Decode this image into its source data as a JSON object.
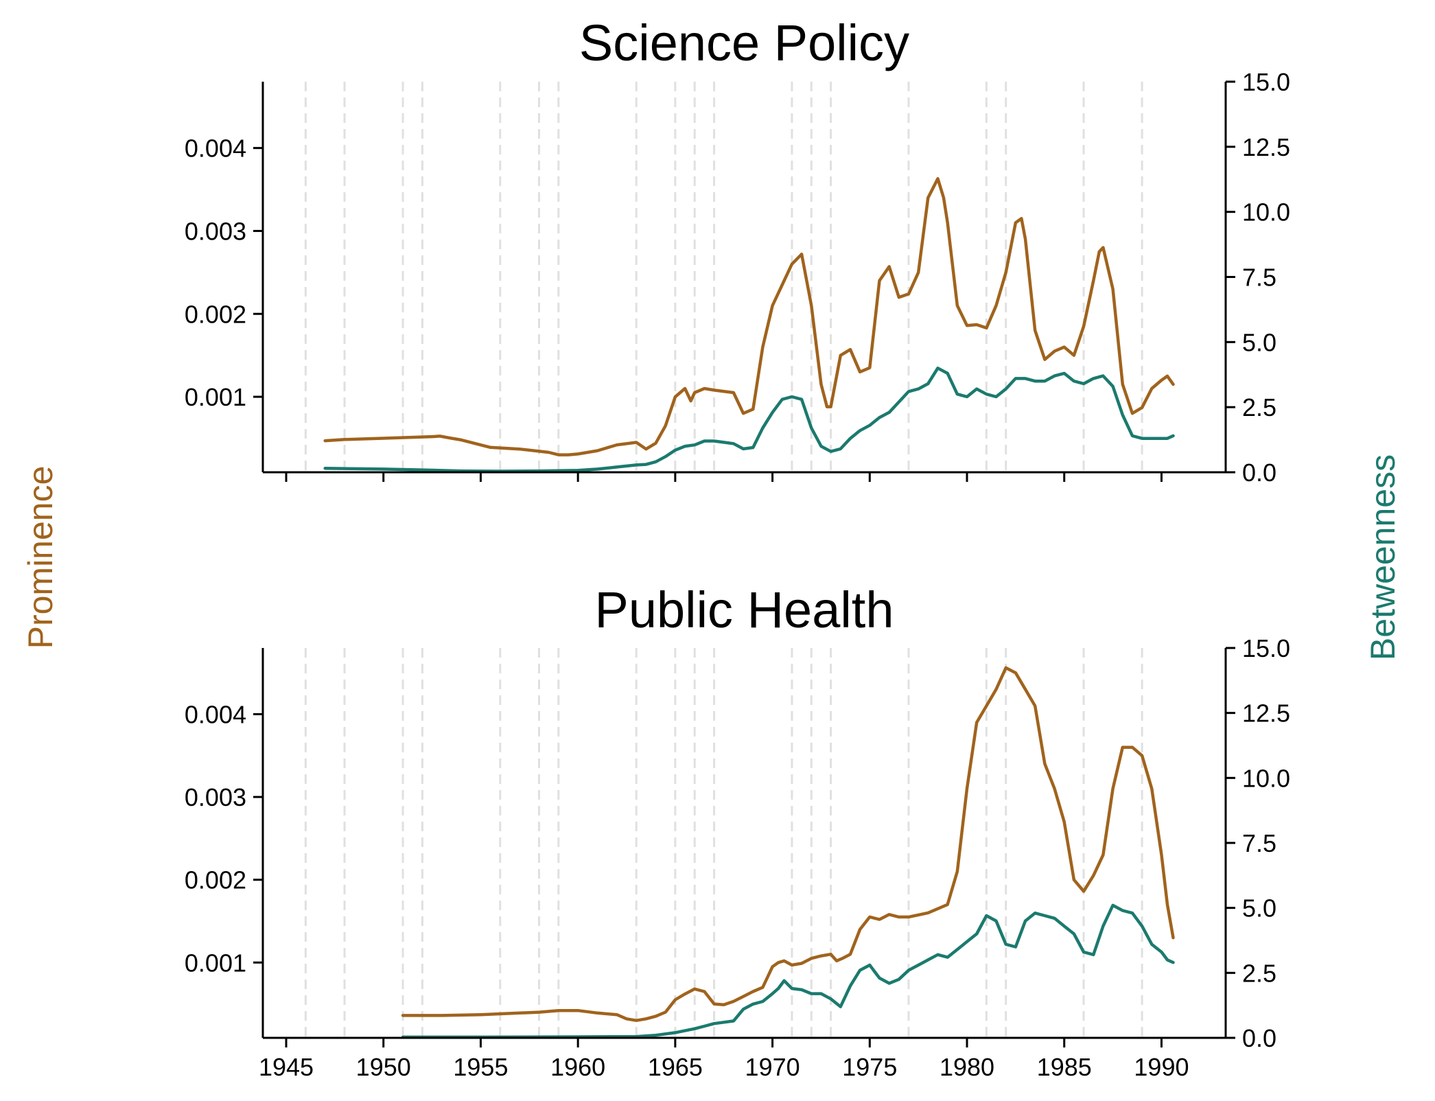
{
  "figure": {
    "ylabel_left": "Prominence",
    "ylabel_right": "Betweenness",
    "colors": {
      "prominence": "#a0631d",
      "betweenness": "#1b7a6e"
    }
  },
  "chart_data": [
    {
      "type": "line",
      "title": "Science Policy",
      "xlim": [
        1943.8,
        1993.3
      ],
      "ylim_left": [
        9e-05,
        0.0048
      ],
      "ylim_right": [
        0,
        15
      ],
      "xticks": [
        1945,
        1950,
        1955,
        1960,
        1965,
        1970,
        1975,
        1980,
        1985,
        1990
      ],
      "xtick_labels_visible": false,
      "left_ticks": [
        0.001,
        0.002,
        0.003,
        0.004
      ],
      "left_tick_labels": [
        "0.001",
        "0.002",
        "0.003",
        "0.004"
      ],
      "right_ticks": [
        0,
        2.5,
        5,
        7.5,
        10,
        12.5,
        15
      ],
      "right_tick_labels": [
        "0.0",
        "2.5",
        "5.0",
        "7.5",
        "10.0",
        "12.5",
        "15.0"
      ],
      "grid": false,
      "event_lines": [
        1946,
        1948,
        1951,
        1952,
        1956,
        1958,
        1959,
        1963,
        1965,
        1966,
        1967,
        1971,
        1972,
        1973,
        1977,
        1981,
        1982,
        1986,
        1989
      ],
      "series": [
        {
          "axis": "left",
          "color": "#a0631d",
          "x": [
            1947.0,
            1948.0,
            1950.0,
            1952.5,
            1952.9,
            1953.5,
            1954.0,
            1955.5,
            1957.0,
            1958.5,
            1959.0,
            1959.5,
            1960.0,
            1961.0,
            1962.0,
            1963.0,
            1963.5,
            1964.0,
            1964.5,
            1965.0,
            1965.5,
            1965.8,
            1966.0,
            1966.5,
            1967.0,
            1968.0,
            1968.5,
            1969.0,
            1969.5,
            1970.0,
            1971.0,
            1971.5,
            1972.0,
            1972.5,
            1972.8,
            1973.0,
            1973.5,
            1974.0,
            1974.5,
            1975.0,
            1975.5,
            1976.0,
            1976.5,
            1977.0,
            1977.5,
            1978.0,
            1978.5,
            1978.8,
            1979.0,
            1979.5,
            1980.0,
            1980.5,
            1981.0,
            1981.5,
            1982.0,
            1982.5,
            1982.8,
            1983.0,
            1983.5,
            1984.0,
            1984.5,
            1985.0,
            1985.5,
            1986.0,
            1986.5,
            1986.8,
            1987.0,
            1987.5,
            1988.0,
            1988.5,
            1989.0,
            1989.5,
            1990.0,
            1990.3,
            1990.6
          ],
          "y": [
            0.00047,
            0.000485,
            0.0005,
            0.00052,
            0.000525,
            0.0005,
            0.00048,
            0.00039,
            0.00037,
            0.00033,
            0.0003,
            0.0003,
            0.00031,
            0.00035,
            0.00042,
            0.00045,
            0.00037,
            0.00044,
            0.00065,
            0.001,
            0.0011,
            0.00095,
            0.00105,
            0.0011,
            0.00108,
            0.00105,
            0.0008,
            0.00085,
            0.0016,
            0.0021,
            0.0026,
            0.00272,
            0.0021,
            0.00115,
            0.00088,
            0.00088,
            0.0015,
            0.00157,
            0.0013,
            0.00135,
            0.0024,
            0.00257,
            0.0022,
            0.00224,
            0.0025,
            0.0034,
            0.00363,
            0.0034,
            0.0031,
            0.0021,
            0.00186,
            0.00187,
            0.00183,
            0.0021,
            0.0025,
            0.0031,
            0.00315,
            0.0029,
            0.0018,
            0.00145,
            0.00155,
            0.0016,
            0.0015,
            0.00185,
            0.0024,
            0.00275,
            0.0028,
            0.0023,
            0.00115,
            0.0008,
            0.00087,
            0.0011,
            0.0012,
            0.00125,
            0.00115
          ]
        },
        {
          "axis": "right",
          "color": "#1b7a6e",
          "x": [
            1947.0,
            1950.0,
            1952.0,
            1954.0,
            1956.0,
            1958.0,
            1960.0,
            1961.0,
            1962.0,
            1963.0,
            1963.5,
            1964.0,
            1964.5,
            1965.0,
            1965.5,
            1966.0,
            1966.5,
            1967.0,
            1967.5,
            1968.0,
            1968.5,
            1969.0,
            1969.5,
            1970.0,
            1970.5,
            1971.0,
            1971.5,
            1972.0,
            1972.5,
            1973.0,
            1973.5,
            1974.0,
            1974.5,
            1975.0,
            1975.5,
            1976.0,
            1976.5,
            1977.0,
            1977.5,
            1978.0,
            1978.5,
            1979.0,
            1979.5,
            1980.0,
            1980.5,
            1981.0,
            1981.5,
            1982.0,
            1982.5,
            1983.0,
            1983.5,
            1984.0,
            1984.5,
            1985.0,
            1985.5,
            1986.0,
            1986.5,
            1987.0,
            1987.5,
            1988.0,
            1988.5,
            1989.0,
            1989.5,
            1990.0,
            1990.3,
            1990.6
          ],
          "y": [
            0.15,
            0.12,
            0.09,
            0.05,
            0.04,
            0.05,
            0.07,
            0.12,
            0.2,
            0.28,
            0.3,
            0.4,
            0.6,
            0.85,
            1.0,
            1.05,
            1.2,
            1.2,
            1.15,
            1.1,
            0.9,
            0.95,
            1.7,
            2.3,
            2.8,
            2.9,
            2.8,
            1.7,
            1.0,
            0.8,
            0.9,
            1.3,
            1.6,
            1.8,
            2.1,
            2.3,
            2.7,
            3.1,
            3.2,
            3.4,
            4.0,
            3.8,
            3.0,
            2.9,
            3.2,
            3.0,
            2.9,
            3.2,
            3.6,
            3.6,
            3.5,
            3.5,
            3.7,
            3.8,
            3.5,
            3.4,
            3.6,
            3.7,
            3.3,
            2.2,
            1.4,
            1.3,
            1.3,
            1.3,
            1.3,
            1.4
          ]
        }
      ]
    },
    {
      "type": "line",
      "title": "Public Health",
      "xlim": [
        1943.8,
        1993.3
      ],
      "ylim_left": [
        9e-05,
        0.0048
      ],
      "ylim_right": [
        0,
        15
      ],
      "xticks": [
        1945,
        1950,
        1955,
        1960,
        1965,
        1970,
        1975,
        1980,
        1985,
        1990
      ],
      "xtick_labels": [
        "1945",
        "1950",
        "1955",
        "1960",
        "1965",
        "1970",
        "1975",
        "1980",
        "1985",
        "1990"
      ],
      "left_ticks": [
        0.001,
        0.002,
        0.003,
        0.004
      ],
      "left_tick_labels": [
        "0.001",
        "0.002",
        "0.003",
        "0.004"
      ],
      "right_ticks": [
        0,
        2.5,
        5,
        7.5,
        10,
        12.5,
        15
      ],
      "right_tick_labels": [
        "0.0",
        "2.5",
        "5.0",
        "7.5",
        "10.0",
        "12.5",
        "15.0"
      ],
      "grid": false,
      "event_lines": [
        1946,
        1948,
        1951,
        1952,
        1956,
        1958,
        1959,
        1963,
        1965,
        1966,
        1967,
        1971,
        1972,
        1973,
        1977,
        1981,
        1982,
        1986,
        1989
      ],
      "series": [
        {
          "axis": "left",
          "color": "#a0631d",
          "x": [
            1951.0,
            1953.0,
            1955.0,
            1958.0,
            1959.0,
            1960.0,
            1961.0,
            1962.0,
            1962.5,
            1963.0,
            1963.5,
            1964.0,
            1964.5,
            1965.0,
            1965.5,
            1966.0,
            1966.5,
            1967.0,
            1967.5,
            1968.0,
            1968.5,
            1969.0,
            1969.5,
            1970.0,
            1970.3,
            1970.6,
            1971.0,
            1971.5,
            1972.0,
            1972.5,
            1973.0,
            1973.3,
            1973.6,
            1974.0,
            1974.5,
            1975.0,
            1975.5,
            1976.0,
            1976.5,
            1977.0,
            1978.0,
            1979.0,
            1979.5,
            1980.0,
            1980.5,
            1981.0,
            1981.5,
            1982.0,
            1982.5,
            1983.0,
            1983.5,
            1984.0,
            1984.5,
            1985.0,
            1985.5,
            1986.0,
            1986.5,
            1987.0,
            1987.5,
            1988.0,
            1988.5,
            1989.0,
            1989.5,
            1990.0,
            1990.3,
            1990.6
          ],
          "y": [
            0.00036,
            0.00036,
            0.00037,
            0.0004,
            0.00042,
            0.00042,
            0.00039,
            0.00037,
            0.00032,
            0.0003,
            0.00032,
            0.00035,
            0.0004,
            0.00055,
            0.00062,
            0.00068,
            0.00065,
            0.0005,
            0.00049,
            0.00053,
            0.00059,
            0.00065,
            0.0007,
            0.00095,
            0.001,
            0.00102,
            0.00097,
            0.00099,
            0.00105,
            0.00108,
            0.0011,
            0.00102,
            0.00105,
            0.0011,
            0.0014,
            0.00155,
            0.00152,
            0.00158,
            0.00155,
            0.00155,
            0.0016,
            0.0017,
            0.0021,
            0.0031,
            0.0039,
            0.0041,
            0.0043,
            0.00456,
            0.0045,
            0.0043,
            0.0041,
            0.0034,
            0.0031,
            0.0027,
            0.002,
            0.00186,
            0.00205,
            0.0023,
            0.0031,
            0.0036,
            0.0036,
            0.0035,
            0.0031,
            0.0023,
            0.0017,
            0.0013
          ]
        },
        {
          "axis": "right",
          "color": "#1b7a6e",
          "x": [
            1951.0,
            1955.0,
            1960.0,
            1963.0,
            1964.0,
            1965.0,
            1966.0,
            1966.5,
            1967.0,
            1967.5,
            1968.0,
            1968.5,
            1969.0,
            1969.5,
            1970.0,
            1970.3,
            1970.6,
            1971.0,
            1971.5,
            1972.0,
            1972.5,
            1973.0,
            1973.5,
            1974.0,
            1974.5,
            1975.0,
            1975.5,
            1976.0,
            1976.5,
            1977.0,
            1977.5,
            1978.0,
            1978.5,
            1979.0,
            1979.5,
            1980.0,
            1980.5,
            1981.0,
            1981.5,
            1982.0,
            1982.5,
            1983.0,
            1983.5,
            1984.0,
            1984.5,
            1985.0,
            1985.5,
            1986.0,
            1986.5,
            1987.0,
            1987.5,
            1988.0,
            1988.5,
            1989.0,
            1989.5,
            1990.0,
            1990.3,
            1990.6
          ],
          "y": [
            0.03,
            0.03,
            0.04,
            0.05,
            0.1,
            0.2,
            0.35,
            0.45,
            0.55,
            0.6,
            0.65,
            1.1,
            1.3,
            1.4,
            1.7,
            1.9,
            2.2,
            1.9,
            1.85,
            1.7,
            1.7,
            1.5,
            1.2,
            2.0,
            2.6,
            2.8,
            2.3,
            2.1,
            2.25,
            2.6,
            2.8,
            3.0,
            3.2,
            3.1,
            3.4,
            3.7,
            4.0,
            4.7,
            4.5,
            3.6,
            3.5,
            4.5,
            4.8,
            4.7,
            4.6,
            4.3,
            4.0,
            3.3,
            3.2,
            4.3,
            5.1,
            4.9,
            4.8,
            4.3,
            3.6,
            3.3,
            3.0,
            2.9
          ]
        }
      ]
    }
  ]
}
